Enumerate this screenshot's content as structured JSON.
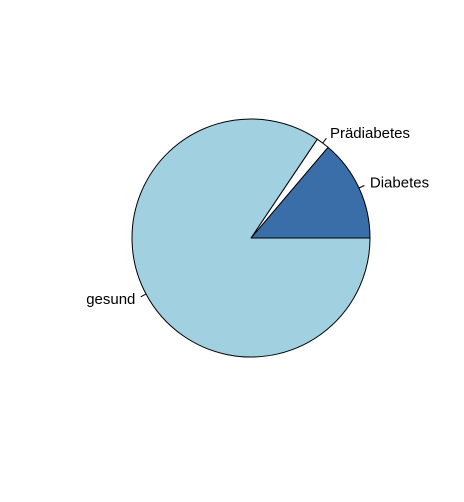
{
  "chart_data": {
    "type": "pie",
    "categories": [
      "Diabetes",
      "Prädiabetes",
      "gesund"
    ],
    "values": [
      13.8,
      1.8,
      84.4
    ],
    "colors": [
      "#3A6EA8",
      "#FFFFFF",
      "#A1D0E1"
    ],
    "start": "east",
    "direction": "counterclockwise",
    "title": "",
    "legend": "none",
    "label_placement": "outside"
  }
}
